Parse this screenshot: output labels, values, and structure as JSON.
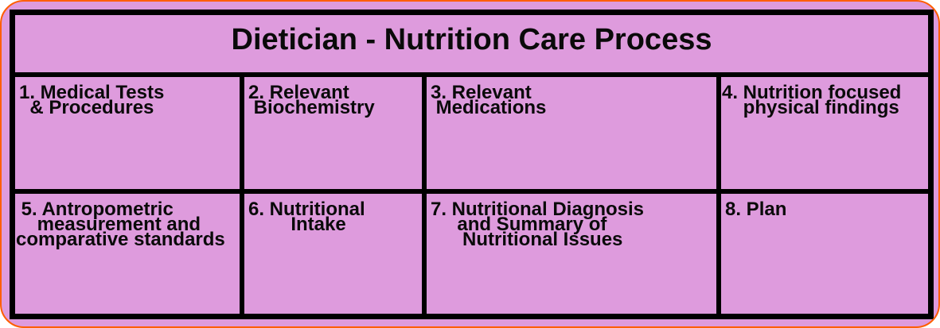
{
  "title": "Dietician - Nutrition Care Process",
  "cells": [
    {
      "id": "1",
      "text": "1. Medical Tests\n  & Procedures"
    },
    {
      "id": "2",
      "text": "2. Relevant\n Biochemistry"
    },
    {
      "id": "3",
      "text": "3. Relevant\n Medications"
    },
    {
      "id": "4",
      "text": "4. Nutrition focused\n    physical findings"
    },
    {
      "id": "5",
      "text": " 5. Antropometric\n    measurement and\ncomparative standards"
    },
    {
      "id": "6",
      "text": "6. Nutritional\n        Intake"
    },
    {
      "id": "7",
      "text": "7. Nutritional Diagnosis\n     and Summary of\n      Nutritional Issues"
    },
    {
      "id": "8",
      "text": "8. Plan"
    }
  ],
  "colors": {
    "background_pink": "#DE9BDD",
    "table_border": "#000000",
    "outer_outline_orange": "#FF5E00",
    "text": "#0A0A0A"
  }
}
